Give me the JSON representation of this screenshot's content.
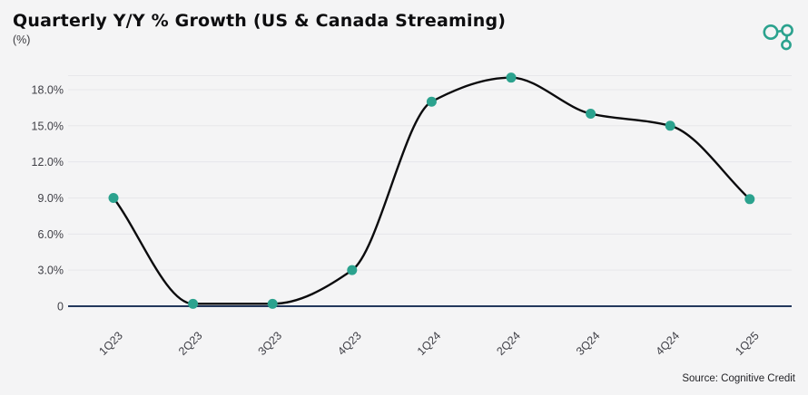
{
  "header": {
    "title": "Quarterly Y/Y % Growth (US & Canada Streaming)",
    "subtitle": "(%)"
  },
  "footer": {
    "source": "Source: Cognitive Credit"
  },
  "logo": {
    "icon": "cognitive-credit-molecule-logo",
    "color": "#2BA28E"
  },
  "colors": {
    "background": "#F4F4F5",
    "line": "#0B0B0D",
    "point": "#2BA28E",
    "gridline": "#E7E7EA",
    "zero_axis": "#23375C",
    "axis_text": "#3F3F46"
  },
  "chart_data": {
    "type": "line",
    "title": "Quarterly Y/Y % Growth (US & Canada Streaming)",
    "unit": "%",
    "xlabel": "",
    "ylabel": "(%)",
    "categories": [
      "1Q23",
      "2Q23",
      "3Q23",
      "4Q23",
      "1Q24",
      "2Q24",
      "3Q24",
      "4Q24",
      "1Q25"
    ],
    "series": [
      {
        "name": "Quarterly Y/Y % Growth (US & Canada Streaming)",
        "values": [
          9.0,
          0.2,
          0.2,
          3.0,
          17.0,
          19.0,
          16.0,
          15.0,
          8.9
        ]
      }
    ],
    "y_axis": {
      "ticks": [
        0,
        3,
        6,
        9,
        12,
        15,
        18
      ],
      "tick_labels": [
        "0",
        "3.0%",
        "6.0%",
        "9.0%",
        "12.0%",
        "15.0%",
        "18.0%"
      ],
      "range": [
        0,
        19.2
      ]
    },
    "grid": "horizontal",
    "legend": "none",
    "marker": "circle",
    "x_label_rotation": -45
  }
}
